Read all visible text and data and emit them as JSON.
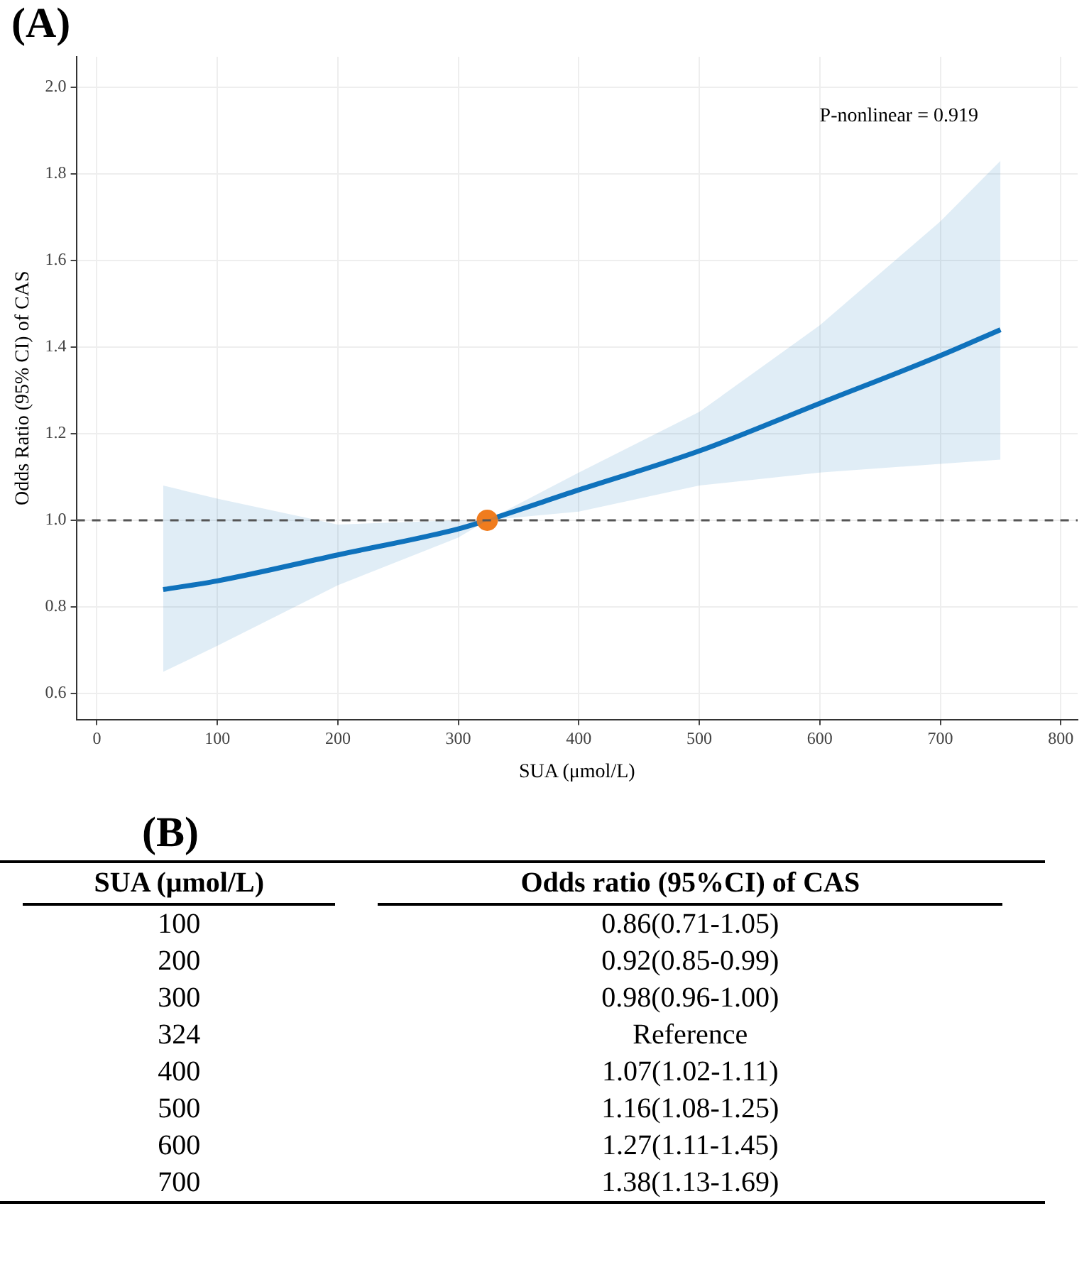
{
  "chart_data": [
    {
      "type": "line",
      "title": "(A)",
      "xlabel": "SUA (μmol/L)",
      "ylabel": "Odds Ratio (95% CI) of CAS",
      "xlim": [
        -17,
        814
      ],
      "xticks": [
        0,
        100,
        200,
        300,
        400,
        500,
        600,
        700,
        800
      ],
      "ylim": [
        0.54,
        2.07
      ],
      "yticks": [
        0.6,
        0.8,
        {
          "value": 1.0,
          "label": "1.0"
        },
        1.2,
        1.4,
        1.6,
        1.8,
        {
          "value": 2.0,
          "label": "2.0"
        }
      ],
      "grid": true,
      "legend": false,
      "series": [
        {
          "type": "line",
          "color": "#0f72bd",
          "x": [
            55,
            100,
            200,
            300,
            324,
            400,
            500,
            600,
            700,
            750
          ],
          "values": [
            0.84,
            0.86,
            0.92,
            0.98,
            1.0,
            1.07,
            1.16,
            1.27,
            1.38,
            1.44
          ],
          "lower": [
            0.65,
            0.71,
            0.85,
            0.96,
            1.0,
            1.02,
            1.08,
            1.11,
            1.13,
            1.14
          ],
          "upper": [
            1.08,
            1.05,
            0.99,
            1.0,
            1.0,
            1.11,
            1.25,
            1.45,
            1.69,
            1.83
          ]
        },
        {
          "type": "scatter",
          "color": "#f07c1e",
          "marker": "circle",
          "x": [
            324
          ],
          "values": [
            1.0
          ]
        }
      ],
      "ref_lines": [
        {
          "axis": "y",
          "value": 1.0,
          "color": "#555555",
          "line_style": "dashed"
        }
      ],
      "annotations": [
        "P-nonlinear = 0.919"
      ]
    },
    {
      "type": "other",
      "title": "(B)",
      "annotations": [
        "SUA (μmol/L)",
        "Odds ratio (95%CI) of CAS",
        "100",
        "0.86(0.71-1.05)",
        "200",
        "0.92(0.85-0.99)",
        "300",
        "0.98(0.96-1.00)",
        "324",
        "Reference",
        "400",
        "1.07(1.02-1.11)",
        "500",
        "1.16(1.08-1.25)",
        "600",
        "1.27(1.11-1.45)",
        "700",
        "1.38(1.13-1.69)"
      ]
    }
  ]
}
